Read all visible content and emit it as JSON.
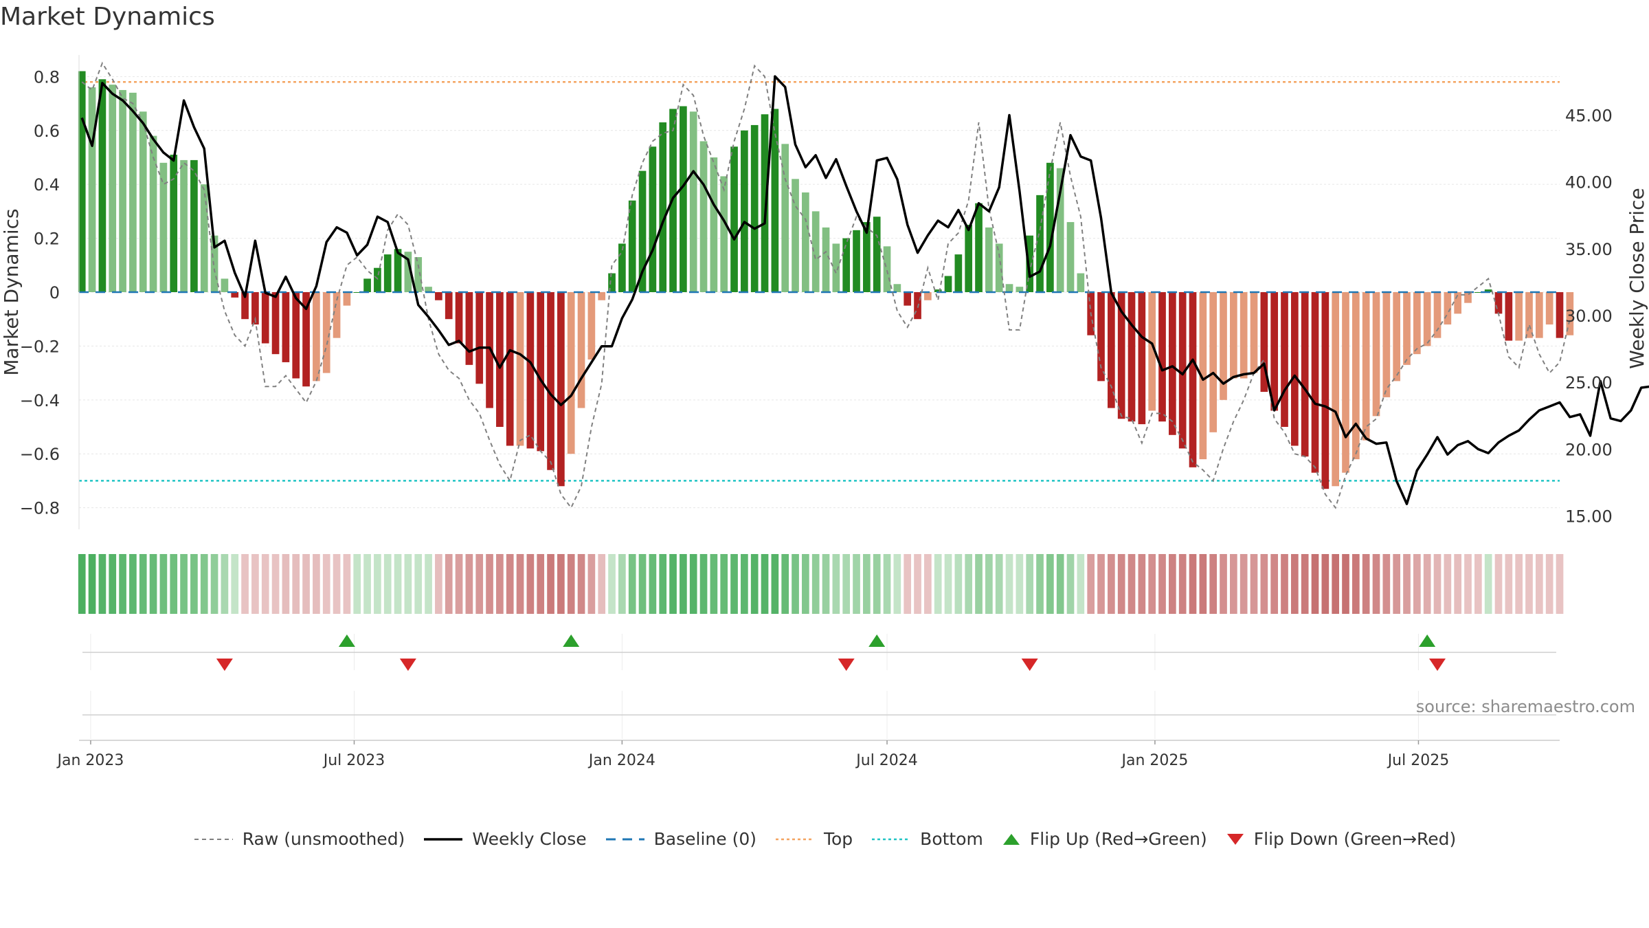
{
  "colors": {
    "green_dark": "#228b22",
    "green_light": "#82bf82",
    "red_dark": "#b22222",
    "red_light": "#e49a7a",
    "raw_line": "#808080",
    "close_line": "#000000",
    "baseline": "#1f77b4",
    "top_line": "#f4a460",
    "bottom_line": "#20c4c4",
    "flip_up": "#2ca02c",
    "flip_down": "#d62728"
  },
  "chart_data": {
    "type": "bar",
    "title": "Market Dynamics",
    "ylabel_left": "Market Dynamics",
    "ylabel_right": "Weekly Close Price",
    "ylim_left": [
      -0.88,
      0.88
    ],
    "ylim_right": [
      14.0,
      49.5
    ],
    "left_ticks": [
      {
        "v": 0.8,
        "label": "0.8"
      },
      {
        "v": 0.6,
        "label": "0.6"
      },
      {
        "v": 0.4,
        "label": "0.4"
      },
      {
        "v": 0.2,
        "label": "0.2"
      },
      {
        "v": 0.0,
        "label": "0"
      },
      {
        "v": -0.2,
        "label": "−0.2"
      },
      {
        "v": -0.4,
        "label": "−0.4"
      },
      {
        "v": -0.6,
        "label": "−0.6"
      },
      {
        "v": -0.8,
        "label": "−0.8"
      }
    ],
    "right_ticks": [
      {
        "v": 45,
        "label": "45.00"
      },
      {
        "v": 40,
        "label": "40.00"
      },
      {
        "v": 35,
        "label": "35.00"
      },
      {
        "v": 30,
        "label": "30.00"
      },
      {
        "v": 25,
        "label": "25.00"
      },
      {
        "v": 20,
        "label": "20.00"
      },
      {
        "v": 15,
        "label": "15.00"
      }
    ],
    "x_ticks": [
      {
        "date": "2023-01-01",
        "label": "Jan 2023"
      },
      {
        "date": "2023-07-01",
        "label": "Jul 2023"
      },
      {
        "date": "2024-01-01",
        "label": "Jan 2024"
      },
      {
        "date": "2024-07-01",
        "label": "Jul 2024"
      },
      {
        "date": "2025-01-01",
        "label": "Jan 2025"
      },
      {
        "date": "2025-07-01",
        "label": "Jul 2025"
      }
    ],
    "x_range": [
      "2022-12-24",
      "2025-10-06"
    ],
    "top_level": 0.78,
    "bottom_level": -0.7,
    "baseline_level": 0,
    "start_date": "2022-12-26",
    "dynamics": [
      0.82,
      0.76,
      0.79,
      0.77,
      0.75,
      0.74,
      0.67,
      0.58,
      0.48,
      0.51,
      0.49,
      0.49,
      0.4,
      0.21,
      0.05,
      -0.02,
      -0.1,
      -0.12,
      -0.19,
      -0.23,
      -0.26,
      -0.32,
      -0.35,
      -0.33,
      -0.3,
      -0.17,
      -0.05,
      0.0,
      0.05,
      0.09,
      0.14,
      0.16,
      0.15,
      0.13,
      0.02,
      -0.03,
      -0.1,
      -0.19,
      -0.27,
      -0.34,
      -0.43,
      -0.5,
      -0.57,
      -0.57,
      -0.58,
      -0.59,
      -0.66,
      -0.72,
      -0.6,
      -0.43,
      -0.25,
      -0.03,
      0.07,
      0.18,
      0.34,
      0.45,
      0.54,
      0.63,
      0.68,
      0.69,
      0.67,
      0.56,
      0.5,
      0.43,
      0.54,
      0.6,
      0.62,
      0.66,
      0.68,
      0.55,
      0.42,
      0.37,
      0.3,
      0.24,
      0.18,
      0.2,
      0.23,
      0.26,
      0.28,
      0.17,
      0.03,
      -0.05,
      -0.1,
      -0.03,
      0.01,
      0.06,
      0.14,
      0.25,
      0.33,
      0.24,
      0.18,
      0.03,
      0.02,
      0.21,
      0.36,
      0.48,
      0.46,
      0.26,
      0.07,
      -0.16,
      -0.33,
      -0.43,
      -0.47,
      -0.48,
      -0.49,
      -0.44,
      -0.48,
      -0.53,
      -0.58,
      -0.65,
      -0.62,
      -0.52,
      -0.4,
      -0.32,
      -0.32,
      -0.3,
      -0.37,
      -0.44,
      -0.5,
      -0.57,
      -0.61,
      -0.67,
      -0.73,
      -0.72,
      -0.67,
      -0.62,
      -0.55,
      -0.46,
      -0.39,
      -0.33,
      -0.27,
      -0.23,
      -0.2,
      -0.17,
      -0.12,
      -0.08,
      -0.04,
      0.0,
      0.01,
      -0.08,
      -0.18,
      -0.18,
      -0.17,
      -0.17,
      -0.12,
      -0.17,
      -0.16
    ],
    "raw": [
      0.78,
      0.75,
      0.85,
      0.79,
      0.72,
      0.7,
      0.63,
      0.5,
      0.4,
      0.42,
      0.48,
      0.45,
      0.38,
      0.08,
      -0.07,
      -0.16,
      -0.2,
      -0.1,
      -0.35,
      -0.35,
      -0.31,
      -0.36,
      -0.41,
      -0.33,
      -0.2,
      -0.03,
      0.1,
      0.13,
      0.08,
      0.05,
      0.23,
      0.29,
      0.25,
      0.1,
      -0.1,
      -0.23,
      -0.29,
      -0.32,
      -0.4,
      -0.45,
      -0.55,
      -0.64,
      -0.7,
      -0.55,
      -0.53,
      -0.59,
      -0.63,
      -0.75,
      -0.8,
      -0.72,
      -0.5,
      -0.34,
      0.1,
      0.15,
      0.36,
      0.48,
      0.56,
      0.59,
      0.6,
      0.77,
      0.73,
      0.58,
      0.48,
      0.38,
      0.56,
      0.68,
      0.84,
      0.8,
      0.59,
      0.42,
      0.32,
      0.27,
      0.12,
      0.15,
      0.07,
      0.18,
      0.28,
      0.24,
      0.21,
      0.08,
      -0.07,
      -0.13,
      -0.06,
      0.09,
      -0.03,
      0.18,
      0.22,
      0.34,
      0.63,
      0.31,
      0.14,
      -0.14,
      -0.14,
      0.08,
      0.23,
      0.45,
      0.63,
      0.43,
      0.28,
      -0.08,
      -0.28,
      -0.35,
      -0.46,
      -0.47,
      -0.56,
      -0.45,
      -0.45,
      -0.48,
      -0.55,
      -0.63,
      -0.66,
      -0.7,
      -0.58,
      -0.48,
      -0.4,
      -0.3,
      -0.25,
      -0.47,
      -0.52,
      -0.6,
      -0.61,
      -0.65,
      -0.75,
      -0.8,
      -0.68,
      -0.6,
      -0.5,
      -0.47,
      -0.36,
      -0.31,
      -0.25,
      -0.21,
      -0.19,
      -0.14,
      -0.08,
      -0.01,
      -0.01,
      0.02,
      0.05,
      -0.08,
      -0.24,
      -0.28,
      -0.12,
      -0.23,
      -0.3,
      -0.26,
      -0.1
    ],
    "close": [
      44.8,
      42.7,
      47.4,
      46.6,
      46.1,
      45.3,
      44.4,
      43.2,
      42.2,
      41.6,
      46.1,
      44.1,
      42.5,
      35.1,
      35.6,
      33.2,
      31.4,
      35.6,
      31.7,
      31.4,
      32.9,
      31.3,
      30.5,
      32.2,
      35.5,
      36.6,
      36.2,
      34.5,
      35.3,
      37.4,
      37.0,
      34.7,
      34.2,
      30.8,
      29.9,
      28.9,
      27.8,
      28.1,
      27.3,
      27.6,
      27.6,
      26.1,
      27.4,
      27.1,
      26.5,
      25.2,
      24.1,
      23.3,
      24.0,
      25.3,
      26.5,
      27.7,
      27.7,
      29.8,
      31.2,
      33.3,
      34.9,
      37.0,
      38.8,
      39.7,
      40.8,
      39.8,
      38.3,
      37.1,
      35.7,
      37.0,
      36.5,
      36.9,
      47.9,
      47.1,
      42.8,
      41.1,
      42.0,
      40.3,
      41.7,
      39.7,
      37.8,
      36.2,
      41.6,
      41.8,
      40.2,
      36.8,
      34.7,
      36.0,
      37.1,
      36.6,
      37.9,
      36.4,
      38.4,
      37.8,
      39.6,
      45.0,
      39.3,
      32.9,
      33.3,
      35.2,
      39.3,
      43.5,
      41.9,
      41.6,
      37.3,
      31.7,
      30.3,
      29.3,
      28.4,
      27.9,
      25.9,
      26.2,
      25.6,
      26.7,
      25.2,
      25.7,
      24.9,
      25.4,
      25.6,
      25.7,
      26.4,
      22.9,
      24.4,
      25.5,
      24.5,
      23.4,
      23.2,
      22.8,
      20.9,
      21.9,
      20.8,
      20.4,
      20.5,
      17.6,
      15.9,
      18.4,
      19.6,
      20.9,
      19.6,
      20.3,
      20.6,
      20.0,
      19.7,
      20.5,
      21.0,
      21.4,
      22.2,
      22.9,
      23.2,
      23.5,
      22.4,
      22.6,
      21.0,
      25.1,
      22.3,
      22.1,
      22.9,
      24.6,
      24.7
    ],
    "strip": {
      "colors": [
        "#4caf60",
        "#4caf60",
        "#55b368",
        "#55b368",
        "#5db76f",
        "#5db76f",
        "#66bb76",
        "#66bb76",
        "#6fbf7d",
        "#6fbf7d",
        "#78c385",
        "#78c385",
        "#82c78d",
        "#90cd99",
        "#a9d8b0",
        "#c4e4c8",
        "#e8c3c3",
        "#e8c3c3",
        "#e8c3c3",
        "#e8c3c3",
        "#e5bdbd",
        "#e5bdbd",
        "#e5bdbd",
        "#e5bdbd",
        "#e8c3c3",
        "#e8c3c3",
        "#e8c3c3",
        "#c4e4c8",
        "#c4e4c8",
        "#c4e4c8",
        "#c4e4c8",
        "#c4e4c8",
        "#c4e4c8",
        "#c4e4c8",
        "#c4e4c8",
        "#e5bdbd",
        "#d99e9e",
        "#d99e9e",
        "#d69797",
        "#d69797",
        "#d38f8f",
        "#d38f8f",
        "#d08888",
        "#d08888",
        "#cd8181",
        "#cd8181",
        "#ca7a7a",
        "#ca7a7a",
        "#cd8181",
        "#d08888",
        "#d99e9e",
        "#e5bdbd",
        "#c4e4c8",
        "#a9d8b0",
        "#78c385",
        "#6fbf7d",
        "#66bb76",
        "#5db76f",
        "#55b368",
        "#55b368",
        "#55b368",
        "#5db76f",
        "#66bb76",
        "#66bb76",
        "#5db76f",
        "#5db76f",
        "#55b368",
        "#55b368",
        "#55b368",
        "#66bb76",
        "#78c385",
        "#82c78d",
        "#90cd99",
        "#98d0a0",
        "#a9d8b0",
        "#a9d8b0",
        "#a0d4a8",
        "#98d0a0",
        "#98d0a0",
        "#a9d8b0",
        "#c4e4c8",
        "#e8c3c3",
        "#e8c3c3",
        "#e8c3c3",
        "#c4e4c8",
        "#c4e4c8",
        "#b8dfbe",
        "#a9d8b0",
        "#98d0a0",
        "#a0d4a8",
        "#a9d8b0",
        "#c4e4c8",
        "#c4e4c8",
        "#a9d8b0",
        "#90cd99",
        "#82c78d",
        "#82c78d",
        "#a0d4a8",
        "#c4e4c8",
        "#d99e9e",
        "#d69797",
        "#d38f8f",
        "#d08888",
        "#d08888",
        "#d08888",
        "#d38f8f",
        "#d08888",
        "#cd8181",
        "#cd8181",
        "#ca7a7a",
        "#ca7a7a",
        "#cd8181",
        "#d38f8f",
        "#d69797",
        "#d69797",
        "#d69797",
        "#d38f8f",
        "#d08888",
        "#cd8181",
        "#ca7a7a",
        "#ca7a7a",
        "#c67272",
        "#c67272",
        "#c67272",
        "#c67272",
        "#ca7a7a",
        "#cd8181",
        "#d08888",
        "#d38f8f",
        "#d69797",
        "#d99e9e",
        "#dca6a6",
        "#dfadad",
        "#e2b5b5",
        "#e5bdbd",
        "#e5bdbd",
        "#e8c3c3",
        "#e8c3c3",
        "#c4e4c8",
        "#e8c3c3",
        "#e8c3c3",
        "#e8c3c3",
        "#e8c3c3",
        "#e8c3c3",
        "#e8c3c3",
        "#e8c3c3"
      ]
    },
    "flip_up_dates": [
      "2023-06-26",
      "2023-11-27",
      "2024-06-24",
      "2025-07-07"
    ],
    "flip_down_dates": [
      "2023-04-03",
      "2023-08-07",
      "2024-06-03",
      "2024-10-07",
      "2025-07-14"
    ],
    "annotation": "source: sharemaestro.com",
    "legend": {
      "raw": "Raw (unsmoothed)",
      "close": "Weekly Close",
      "baseline": "Baseline (0)",
      "top": "Top",
      "bottom": "Bottom",
      "flip_up": "Flip Up (Red→Green)",
      "flip_down": "Flip Down (Green→Red)"
    }
  }
}
